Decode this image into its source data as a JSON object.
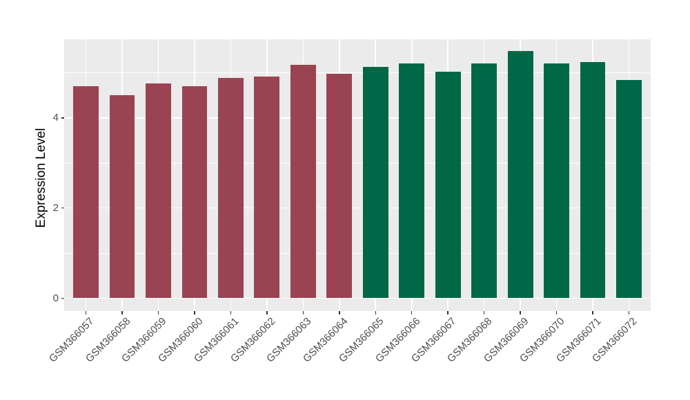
{
  "figure": {
    "background": "#FFFFFF",
    "panel_background": "#EBEBEB",
    "gridline_color": "#FFFFFF",
    "axis_text_color": "#4D4D4D",
    "tick_color": "#333333"
  },
  "chart_data": {
    "type": "bar",
    "title": "",
    "xlabel": "",
    "ylabel": "Expression Level",
    "categories": [
      "GSM366057",
      "GSM366058",
      "GSM366059",
      "GSM366060",
      "GSM366061",
      "GSM366062",
      "GSM366063",
      "GSM366064",
      "GSM366065",
      "GSM366066",
      "GSM366067",
      "GSM366068",
      "GSM366069",
      "GSM366070",
      "GSM366071",
      "GSM366072"
    ],
    "values": [
      4.7,
      4.5,
      4.76,
      4.7,
      4.88,
      4.91,
      5.17,
      4.97,
      5.13,
      5.2,
      5.03,
      5.2,
      5.48,
      5.2,
      5.24,
      4.84
    ],
    "bar_colors": [
      "#9A4352",
      "#9A4352",
      "#9A4352",
      "#9A4352",
      "#9A4352",
      "#9A4352",
      "#9A4352",
      "#9A4352",
      "#006747",
      "#006747",
      "#006747",
      "#006747",
      "#006747",
      "#006747",
      "#006747",
      "#006747"
    ],
    "ylim": [
      0,
      5.74
    ],
    "yticks": [
      0,
      2,
      4
    ],
    "ytick_labels": [
      "0",
      "2",
      "4"
    ],
    "yminor_gridlines": [
      1,
      3,
      5
    ],
    "x_tick_rotation_deg": -45,
    "legend_position": "none",
    "grid": true
  }
}
